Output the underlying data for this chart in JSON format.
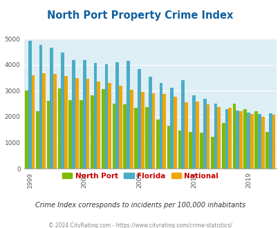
{
  "title": "North Port Property Crime Index",
  "years": [
    1999,
    2000,
    2001,
    2002,
    2003,
    2004,
    2005,
    2006,
    2007,
    2008,
    2009,
    2010,
    2011,
    2012,
    2013,
    2014,
    2015,
    2016,
    2017,
    2018,
    2019,
    2020,
    2021
  ],
  "north_port": [
    3000,
    2200,
    2620,
    3100,
    2650,
    2650,
    2820,
    3050,
    2500,
    2480,
    2350,
    2380,
    1900,
    1650,
    1480,
    1420,
    1380,
    1220,
    1750,
    2510,
    2300,
    2210,
    1420
  ],
  "florida": [
    4920,
    4760,
    4650,
    4470,
    4180,
    4180,
    4060,
    4020,
    4110,
    4160,
    3840,
    3550,
    3290,
    3110,
    3420,
    2820,
    2700,
    2510,
    2300,
    2250,
    2160,
    2100,
    2120
  ],
  "national": [
    3600,
    3680,
    3640,
    3570,
    3490,
    3450,
    3350,
    3300,
    3200,
    3040,
    2960,
    2890,
    2870,
    2760,
    2560,
    2590,
    2490,
    2380,
    2340,
    2200,
    2100,
    2000,
    2090
  ],
  "north_port_color": "#7fba00",
  "florida_color": "#4bacc6",
  "national_color": "#f0a500",
  "plot_bg": "#ddeef5",
  "title_color": "#1060a0",
  "ylim": [
    0,
    5000
  ],
  "yticks": [
    0,
    1000,
    2000,
    3000,
    4000,
    5000
  ],
  "tick_years": [
    1999,
    2004,
    2009,
    2014,
    2019
  ],
  "subtitle": "Crime Index corresponds to incidents per 100,000 inhabitants",
  "footer": "© 2024 CityRating.com - https://www.cityrating.com/crime-statistics/",
  "legend_labels": [
    "North Port",
    "Florida",
    "National"
  ]
}
